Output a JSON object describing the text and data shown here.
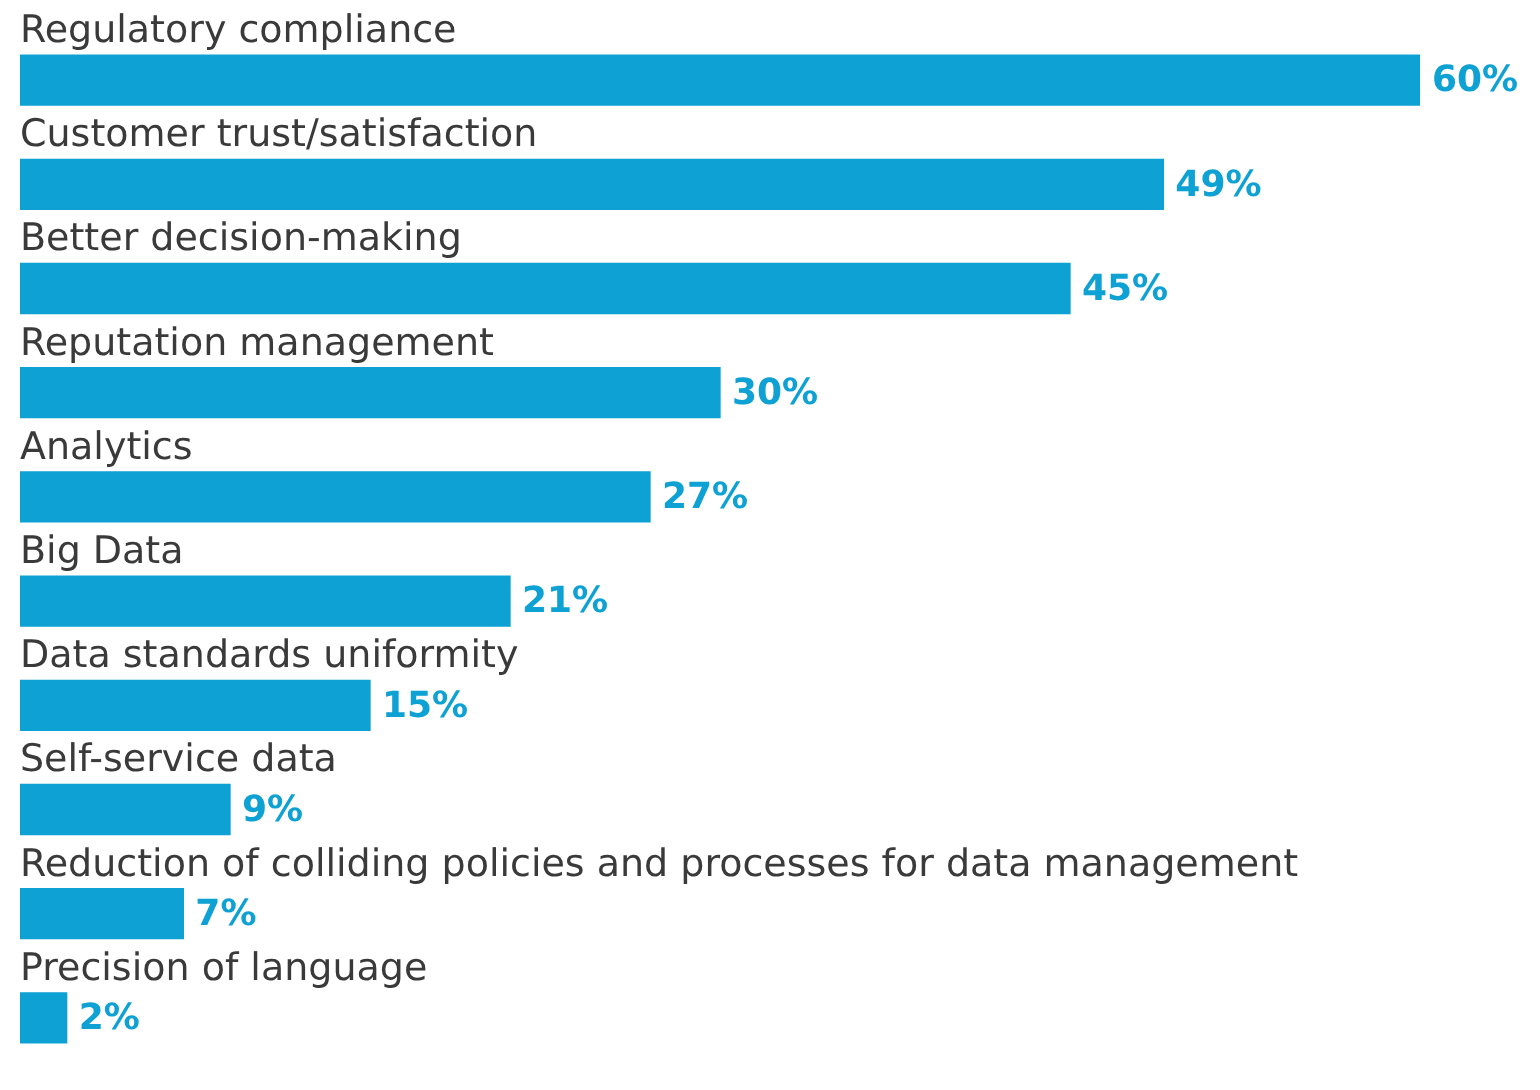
{
  "chart_data": {
    "type": "bar",
    "orientation": "horizontal",
    "categories": [
      "Regulatory compliance",
      "Customer trust/satisfaction",
      "Better decision-making",
      "Reputation management",
      "Analytics",
      "Big Data",
      "Data standards uniformity",
      "Self-service data",
      "Reduction of colliding policies and processes for data management",
      "Precision of language"
    ],
    "values": [
      60,
      49,
      45,
      30,
      27,
      21,
      15,
      9,
      7,
      2
    ],
    "value_labels": [
      "60%",
      "49%",
      "45%",
      "30%",
      "27%",
      "21%",
      "15%",
      "9%",
      "7%",
      "2%"
    ],
    "color": "#0ea1d3",
    "legend": false
  }
}
